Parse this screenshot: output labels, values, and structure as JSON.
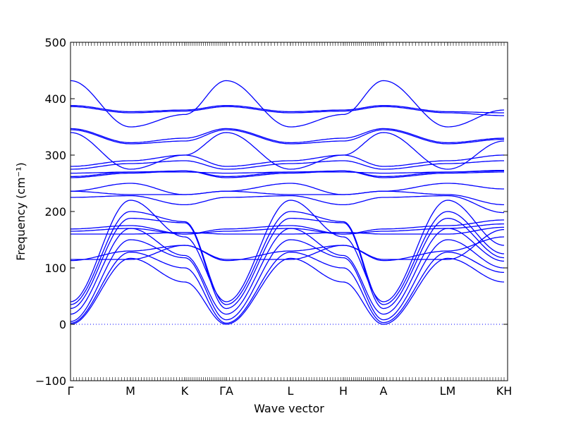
{
  "chart_data": {
    "type": "line",
    "title": "",
    "xlabel": "Wave vector",
    "ylabel": "Frequency (cm⁻¹)",
    "ylim": [
      -100,
      500
    ],
    "yticks": [
      -100,
      0,
      100,
      200,
      300,
      400,
      500
    ],
    "ytick_labels": [
      "−100",
      "0",
      "100",
      "200",
      "300",
      "400",
      "500"
    ],
    "x_range": [
      0,
      6.2
    ],
    "high_symmetry_points": [
      {
        "label": "Γ",
        "x": 0
      },
      {
        "label": "M",
        "x": 0.85
      },
      {
        "label": "K",
        "x": 1.62
      },
      {
        "label": "ΓA",
        "x": 2.21
      },
      {
        "label": "L",
        "x": 3.12
      },
      {
        "label": "H",
        "x": 3.87
      },
      {
        "label": "A",
        "x": 4.44
      },
      {
        "label": "LM",
        "x": 5.35
      },
      {
        "label": "KH",
        "x": 6.15
      }
    ],
    "zero_line": {
      "y": 0,
      "style": "dotted"
    },
    "grid": false,
    "line_color": "#0000ff",
    "series_values_at_points": {
      "ta1": [
        0,
        117,
        75,
        0,
        117,
        75,
        0,
        117,
        75
      ],
      "ta2": [
        2,
        128,
        100,
        2,
        128,
        100,
        3,
        128,
        92
      ],
      "la1": [
        5,
        150,
        118,
        8,
        150,
        118,
        8,
        150,
        100
      ],
      "la2": [
        18,
        170,
        122,
        18,
        170,
        122,
        18,
        170,
        112
      ],
      "opt1": [
        28,
        188,
        180,
        28,
        188,
        180,
        28,
        188,
        118
      ],
      "opt2": [
        35,
        200,
        182,
        35,
        200,
        182,
        35,
        200,
        125
      ],
      "opt3": [
        40,
        220,
        155,
        40,
        220,
        155,
        40,
        220,
        140
      ],
      "b8": [
        113,
        130,
        140,
        113,
        130,
        140,
        113,
        130,
        155
      ],
      "b9": [
        115,
        115,
        140,
        115,
        115,
        140,
        115,
        115,
        168
      ],
      "b10": [
        160,
        160,
        163,
        160,
        160,
        163,
        160,
        160,
        172
      ],
      "b11": [
        165,
        170,
        160,
        165,
        170,
        160,
        165,
        170,
        178
      ],
      "b12": [
        169,
        175,
        160,
        169,
        175,
        160,
        169,
        175,
        185
      ],
      "b13": [
        225,
        228,
        212,
        225,
        228,
        212,
        225,
        228,
        198
      ],
      "b14": [
        236,
        230,
        230,
        236,
        230,
        230,
        236,
        230,
        212
      ],
      "b15": [
        236,
        250,
        230,
        236,
        250,
        230,
        236,
        250,
        240
      ],
      "b16": [
        260,
        268,
        272,
        260,
        268,
        272,
        260,
        268,
        270
      ],
      "b17": [
        262,
        270,
        272,
        262,
        270,
        272,
        262,
        270,
        272
      ],
      "b18": [
        268,
        270,
        270,
        268,
        270,
        270,
        268,
        270,
        273
      ],
      "b19": [
        275,
        285,
        290,
        275,
        285,
        290,
        275,
        285,
        290
      ],
      "b20": [
        280,
        290,
        300,
        280,
        290,
        300,
        280,
        290,
        300
      ],
      "b21": [
        340,
        275,
        300,
        340,
        275,
        300,
        340,
        275,
        325
      ],
      "b22": [
        345,
        320,
        325,
        345,
        320,
        325,
        345,
        320,
        328
      ],
      "b23": [
        347,
        322,
        330,
        347,
        322,
        330,
        347,
        322,
        330
      ],
      "b24": [
        386,
        375,
        378,
        386,
        375,
        378,
        386,
        375,
        370
      ],
      "b25": [
        388,
        377,
        380,
        388,
        377,
        380,
        388,
        377,
        375
      ],
      "b26": [
        432,
        350,
        372,
        432,
        350,
        372,
        432,
        350,
        380
      ]
    }
  }
}
